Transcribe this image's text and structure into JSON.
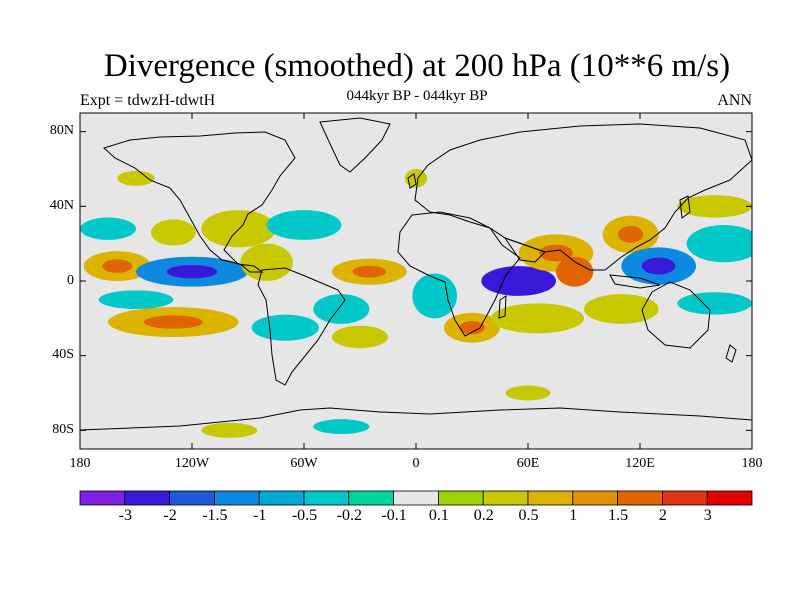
{
  "plot": {
    "title": "Divergence (smoothed) at 200 hPa (10**6 m/s)",
    "subtitle": "044kyr BP - 044kyr BP",
    "left_label": "Expt = tdwzH-tdwtH",
    "right_label": "ANN"
  },
  "axes": {
    "lat_labels": [
      "80N",
      "40N",
      "0",
      "40S",
      "80S"
    ],
    "lat_values": [
      80,
      40,
      0,
      -40,
      -80
    ],
    "lon_labels": [
      "180",
      "120W",
      "60W",
      "0",
      "60E",
      "120E",
      "180"
    ],
    "lon_values": [
      -180,
      -120,
      -60,
      0,
      60,
      120,
      180
    ],
    "lat_range": [
      -90,
      90
    ],
    "lon_range": [
      -180,
      180
    ]
  },
  "colorbar": {
    "labels": [
      "-3",
      "-2",
      "-1.5",
      "-1",
      "-0.5",
      "-0.2",
      "-0.1",
      "0.1",
      "0.2",
      "0.5",
      "1",
      "1.5",
      "2",
      "3"
    ],
    "colors": [
      "#7f1fe0",
      "#3a18d8",
      "#1f5ad6",
      "#0d8ae0",
      "#00a8d6",
      "#00c8c8",
      "#00d49a",
      "#e6e6e6",
      "#9bd400",
      "#c8c800",
      "#dcb400",
      "#e09000",
      "#e06400",
      "#e03214",
      "#e00000"
    ]
  },
  "chart_data": {
    "type": "heatmap",
    "field": "200 hPa divergence difference (smoothed)",
    "units": "10**6 m/s",
    "blobs": [
      {
        "lon": -165,
        "lat": 28,
        "rlon": 15,
        "rlat": 6,
        "class": -1
      },
      {
        "lon": -130,
        "lat": 26,
        "rlon": 12,
        "rlat": 7,
        "class": 1
      },
      {
        "lon": -95,
        "lat": 28,
        "rlon": 20,
        "rlat": 10,
        "class": 1
      },
      {
        "lon": -60,
        "lat": 30,
        "rlon": 20,
        "rlat": 8,
        "class": -1
      },
      {
        "lon": -160,
        "lat": 8,
        "rlon": 18,
        "rlat": 8,
        "class": 2
      },
      {
        "lon": -120,
        "lat": 5,
        "rlon": 30,
        "rlat": 8,
        "class": -2
      },
      {
        "lon": -80,
        "lat": 10,
        "rlon": 14,
        "rlat": 10,
        "class": 1
      },
      {
        "lon": -130,
        "lat": -22,
        "rlon": 35,
        "rlat": 8,
        "class": 2
      },
      {
        "lon": -150,
        "lat": -10,
        "rlon": 20,
        "rlat": 5,
        "class": -1
      },
      {
        "lon": -25,
        "lat": 5,
        "rlon": 20,
        "rlat": 7,
        "class": 2
      },
      {
        "lon": -40,
        "lat": -15,
        "rlon": 15,
        "rlat": 8,
        "class": -1
      },
      {
        "lon": -70,
        "lat": -25,
        "rlon": 18,
        "rlat": 7,
        "class": -1
      },
      {
        "lon": -30,
        "lat": -30,
        "rlon": 15,
        "rlat": 6,
        "class": 1
      },
      {
        "lon": 10,
        "lat": -8,
        "rlon": 12,
        "rlat": 12,
        "class": -1
      },
      {
        "lon": 30,
        "lat": -25,
        "rlon": 15,
        "rlat": 8,
        "class": 2
      },
      {
        "lon": 55,
        "lat": 0,
        "rlon": 20,
        "rlat": 8,
        "class": -3
      },
      {
        "lon": 75,
        "lat": 15,
        "rlon": 20,
        "rlat": 10,
        "class": 2
      },
      {
        "lon": 85,
        "lat": 5,
        "rlon": 10,
        "rlat": 8,
        "class": 3
      },
      {
        "lon": 65,
        "lat": -20,
        "rlon": 25,
        "rlat": 8,
        "class": 1
      },
      {
        "lon": 115,
        "lat": 25,
        "rlon": 15,
        "rlat": 10,
        "class": 2
      },
      {
        "lon": 130,
        "lat": 8,
        "rlon": 20,
        "rlat": 10,
        "class": -2
      },
      {
        "lon": 165,
        "lat": 20,
        "rlon": 20,
        "rlat": 10,
        "class": -1
      },
      {
        "lon": 160,
        "lat": 40,
        "rlon": 20,
        "rlat": 6,
        "class": 1
      },
      {
        "lon": 110,
        "lat": -15,
        "rlon": 20,
        "rlat": 8,
        "class": 1
      },
      {
        "lon": 160,
        "lat": -12,
        "rlon": 20,
        "rlat": 6,
        "class": -1
      },
      {
        "lon": -100,
        "lat": -80,
        "rlon": 15,
        "rlat": 4,
        "class": 1
      },
      {
        "lon": -40,
        "lat": -78,
        "rlon": 15,
        "rlat": 4,
        "class": -1
      },
      {
        "lon": 60,
        "lat": -60,
        "rlon": 12,
        "rlat": 4,
        "class": 1
      },
      {
        "lon": -150,
        "lat": 55,
        "rlon": 10,
        "rlat": 4,
        "class": 1
      },
      {
        "lon": 0,
        "lat": 55,
        "rlon": 6,
        "rlat": 5,
        "class": 1
      }
    ]
  }
}
